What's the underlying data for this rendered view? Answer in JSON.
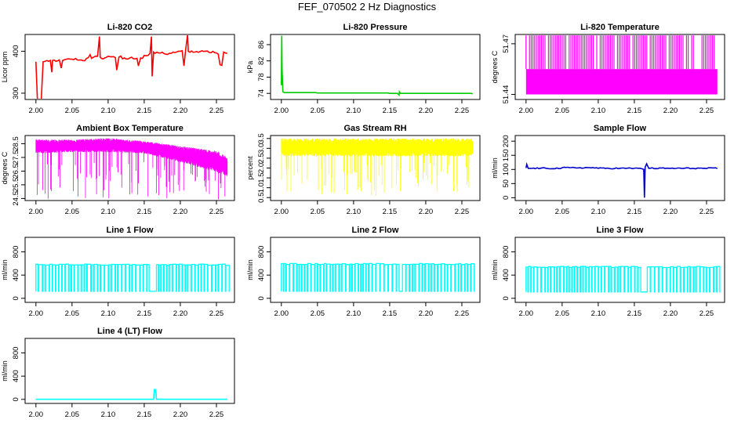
{
  "figure": {
    "title": "FEF_070502  2 Hz Diagnostics"
  },
  "chart_data": [
    {
      "id": "co2",
      "type": "line",
      "title": "Li-820 CO2",
      "xlabel": "",
      "ylabel": "Licor ppm",
      "color": "#ff0000",
      "xlim": [
        1.985,
        2.275
      ],
      "ylim": [
        285,
        440
      ],
      "xticks": [
        2.0,
        2.05,
        2.1,
        2.15,
        2.2,
        2.25
      ],
      "xticklabels": [
        "2.00",
        "2.05",
        "2.10",
        "2.15",
        "2.20",
        "2.25"
      ],
      "yticks": [
        300,
        400
      ],
      "yticklabels": [
        "300",
        "400"
      ],
      "x": [
        2.0,
        2.002,
        2.01,
        2.02,
        2.022,
        2.023,
        2.03,
        2.035,
        2.037,
        2.04,
        2.05,
        2.06,
        2.07,
        2.075,
        2.077,
        2.08,
        2.088,
        2.089,
        2.09,
        2.1,
        2.11,
        2.112,
        2.115,
        2.12,
        2.13,
        2.14,
        2.142,
        2.145,
        2.15,
        2.158,
        2.16,
        2.161,
        2.163,
        2.165,
        2.17,
        2.18,
        2.19,
        2.2,
        2.205,
        2.207,
        2.21,
        2.211,
        2.22,
        2.23,
        2.24,
        2.25,
        2.255,
        2.26,
        2.265
      ],
      "y": [
        375,
        285,
        375,
        378,
        350,
        378,
        377,
        360,
        378,
        380,
        381,
        379,
        383,
        392,
        383,
        386,
        435,
        386,
        384,
        388,
        385,
        355,
        386,
        382,
        384,
        383,
        365,
        384,
        390,
        395,
        435,
        340,
        398,
        395,
        396,
        393,
        398,
        400,
        365,
        398,
        440,
        400,
        398,
        401,
        397,
        396,
        368,
        398,
        395
      ]
    },
    {
      "id": "pressure",
      "type": "line",
      "title": "Li-820 Pressure",
      "xlabel": "",
      "ylabel": "kPa",
      "color": "#00cc00",
      "xlim": [
        1.985,
        2.275
      ],
      "ylim": [
        72.5,
        88.5
      ],
      "xticks": [
        2.0,
        2.05,
        2.1,
        2.15,
        2.2,
        2.25
      ],
      "xticklabels": [
        "2.00",
        "2.05",
        "2.10",
        "2.15",
        "2.20",
        "2.25"
      ],
      "yticks": [
        74,
        78,
        82,
        86
      ],
      "yticklabels": [
        "74",
        "78",
        "82",
        "86"
      ],
      "x": [
        2.0,
        2.0005,
        2.001,
        2.002,
        2.004,
        2.05,
        2.1,
        2.15,
        2.163,
        2.1635,
        2.165,
        2.2,
        2.265
      ],
      "y": [
        76.0,
        88.2,
        80.0,
        74.4,
        74.2,
        74.1,
        74.1,
        74.0,
        73.6,
        74.4,
        74.0,
        74.0,
        73.9
      ]
    },
    {
      "id": "licor-temp",
      "type": "line",
      "title": "Li-820 Temperature",
      "xlabel": "",
      "ylabel": "degrees C",
      "color": "#ff00ff",
      "xlim": [
        1.985,
        2.275
      ],
      "ylim": [
        51.437,
        51.4755
      ],
      "xticks": [
        2.0,
        2.05,
        2.1,
        2.15,
        2.2,
        2.25
      ],
      "xticklabels": [
        "2.00",
        "2.05",
        "2.10",
        "2.15",
        "2.20",
        "2.25"
      ],
      "yticks": [
        51.44,
        51.47
      ],
      "yticklabels": [
        "51.44",
        "51.47"
      ],
      "x": [
        2.0,
        2.265
      ],
      "y_band": [
        51.44,
        51.455
      ],
      "y_spike": 51.475
    },
    {
      "id": "box-temp",
      "type": "line",
      "title": "Ambient Box Temperature",
      "xlabel": "",
      "ylabel": "degrees C",
      "color": "#ff00ff",
      "xlim": [
        1.985,
        2.275
      ],
      "ylim": [
        24.35,
        29.1
      ],
      "xticks": [
        2.0,
        2.05,
        2.1,
        2.15,
        2.2,
        2.25
      ],
      "xticklabels": [
        "2.00",
        "2.05",
        "2.10",
        "2.15",
        "2.20",
        "2.25"
      ],
      "yticks": [
        24.5,
        25.5,
        26.5,
        27.5,
        28.5
      ],
      "yticklabels": [
        "24.5",
        "25.5",
        "26.5",
        "27.5",
        "28.5"
      ],
      "x": [
        2.0,
        2.05,
        2.1,
        2.15,
        2.2,
        2.25,
        2.265
      ],
      "y_high": [
        28.7,
        28.7,
        28.8,
        28.6,
        28.2,
        27.8,
        27.4
      ],
      "y_low": [
        27.9,
        28.0,
        28.0,
        27.9,
        27.3,
        26.6,
        26.3
      ],
      "y_min": 24.4
    },
    {
      "id": "rh",
      "type": "line",
      "title": "Gas Stream RH",
      "xlabel": "",
      "ylabel": "percent",
      "color": "#ffff00",
      "xlim": [
        1.985,
        2.275
      ],
      "ylim": [
        0.35,
        3.65
      ],
      "xticks": [
        2.0,
        2.05,
        2.1,
        2.15,
        2.2,
        2.25
      ],
      "xticklabels": [
        "2.00",
        "2.05",
        "2.10",
        "2.15",
        "2.20",
        "2.25"
      ],
      "yticks": [
        0.5,
        1.0,
        1.5,
        2.0,
        2.5,
        3.0,
        3.5
      ],
      "yticklabels": [
        "0.5",
        "1.0",
        "1.5",
        "2.0",
        "2.5",
        "3.0",
        "3.5"
      ],
      "x": [
        2.0,
        2.265
      ],
      "y_high": 3.4,
      "y_low": 2.7,
      "y_min": 0.6
    },
    {
      "id": "sample-flow",
      "type": "line",
      "title": "Sample Flow",
      "xlabel": "",
      "ylabel": "ml/min",
      "color": "#0000cc",
      "xlim": [
        1.985,
        2.275
      ],
      "ylim": [
        -10,
        220
      ],
      "xticks": [
        2.0,
        2.05,
        2.1,
        2.15,
        2.2,
        2.25
      ],
      "xticklabels": [
        "2.00",
        "2.05",
        "2.10",
        "2.15",
        "2.20",
        "2.25"
      ],
      "yticks": [
        0,
        50,
        100,
        150,
        200
      ],
      "yticklabels": [
        "0",
        "50",
        "100",
        "150",
        "200"
      ],
      "x": [
        2.0,
        2.001,
        2.003,
        2.05,
        2.1,
        2.15,
        2.163,
        2.164,
        2.165,
        2.167,
        2.17,
        2.2,
        2.265
      ],
      "y": [
        105,
        118,
        104,
        106,
        104,
        104,
        100,
        0,
        108,
        120,
        104,
        104,
        103
      ]
    },
    {
      "id": "line1",
      "type": "line",
      "title": "Line 1 Flow",
      "xlabel": "",
      "ylabel": "ml/min",
      "color": "#00ffff",
      "xlim": [
        1.985,
        2.275
      ],
      "ylim": [
        -70,
        1050
      ],
      "xticks": [
        2.0,
        2.05,
        2.1,
        2.15,
        2.2,
        2.25
      ],
      "xticklabels": [
        "2.00",
        "2.05",
        "2.10",
        "2.15",
        "2.20",
        "2.25"
      ],
      "yticks": [
        0,
        400,
        800
      ],
      "yticklabels": [
        "0",
        "400",
        "800"
      ],
      "x": [
        2.0,
        2.265
      ],
      "y_high": 580,
      "y_low": 120,
      "gap": [
        2.157,
        2.165
      ]
    },
    {
      "id": "line2",
      "type": "line",
      "title": "Line 2 Flow",
      "xlabel": "",
      "ylabel": "ml/min",
      "color": "#00ffff",
      "xlim": [
        1.985,
        2.275
      ],
      "ylim": [
        -70,
        1050
      ],
      "xticks": [
        2.0,
        2.05,
        2.1,
        2.15,
        2.2,
        2.25
      ],
      "xticklabels": [
        "2.00",
        "2.05",
        "2.10",
        "2.15",
        "2.20",
        "2.25"
      ],
      "yticks": [
        0,
        400,
        800
      ],
      "yticklabels": [
        "0",
        "400",
        "800"
      ],
      "x": [
        2.0,
        2.265
      ],
      "y_high": 590,
      "y_low": 120,
      "gap": [
        2.16,
        2.166
      ]
    },
    {
      "id": "line3",
      "type": "line",
      "title": "Line 3 Flow",
      "xlabel": "",
      "ylabel": "ml/min",
      "color": "#00ffff",
      "xlim": [
        1.985,
        2.275
      ],
      "ylim": [
        -70,
        1050
      ],
      "xticks": [
        2.0,
        2.05,
        2.1,
        2.15,
        2.2,
        2.25
      ],
      "xticklabels": [
        "2.00",
        "2.05",
        "2.10",
        "2.15",
        "2.20",
        "2.25"
      ],
      "yticks": [
        0,
        400,
        800
      ],
      "yticklabels": [
        "0",
        "400",
        "800"
      ],
      "x": [
        2.0,
        2.265
      ],
      "y_high": 540,
      "y_low": 110,
      "gap": [
        2.157,
        2.166
      ]
    },
    {
      "id": "line4",
      "type": "line",
      "title": "Line 4 (LT) Flow",
      "xlabel": "",
      "ylabel": "ml/min",
      "color": "#00ffff",
      "xlim": [
        1.985,
        2.275
      ],
      "ylim": [
        -70,
        1050
      ],
      "xticks": [
        2.0,
        2.05,
        2.1,
        2.15,
        2.2,
        2.25
      ],
      "xticklabels": [
        "2.00",
        "2.05",
        "2.10",
        "2.15",
        "2.20",
        "2.25"
      ],
      "yticks": [
        0,
        400,
        800
      ],
      "yticklabels": [
        "0",
        "400",
        "800"
      ],
      "x": [
        2.0,
        2.16,
        2.163,
        2.164,
        2.165,
        2.166,
        2.167,
        2.265
      ],
      "y": [
        2,
        2,
        2,
        180,
        140,
        160,
        2,
        2
      ]
    }
  ]
}
